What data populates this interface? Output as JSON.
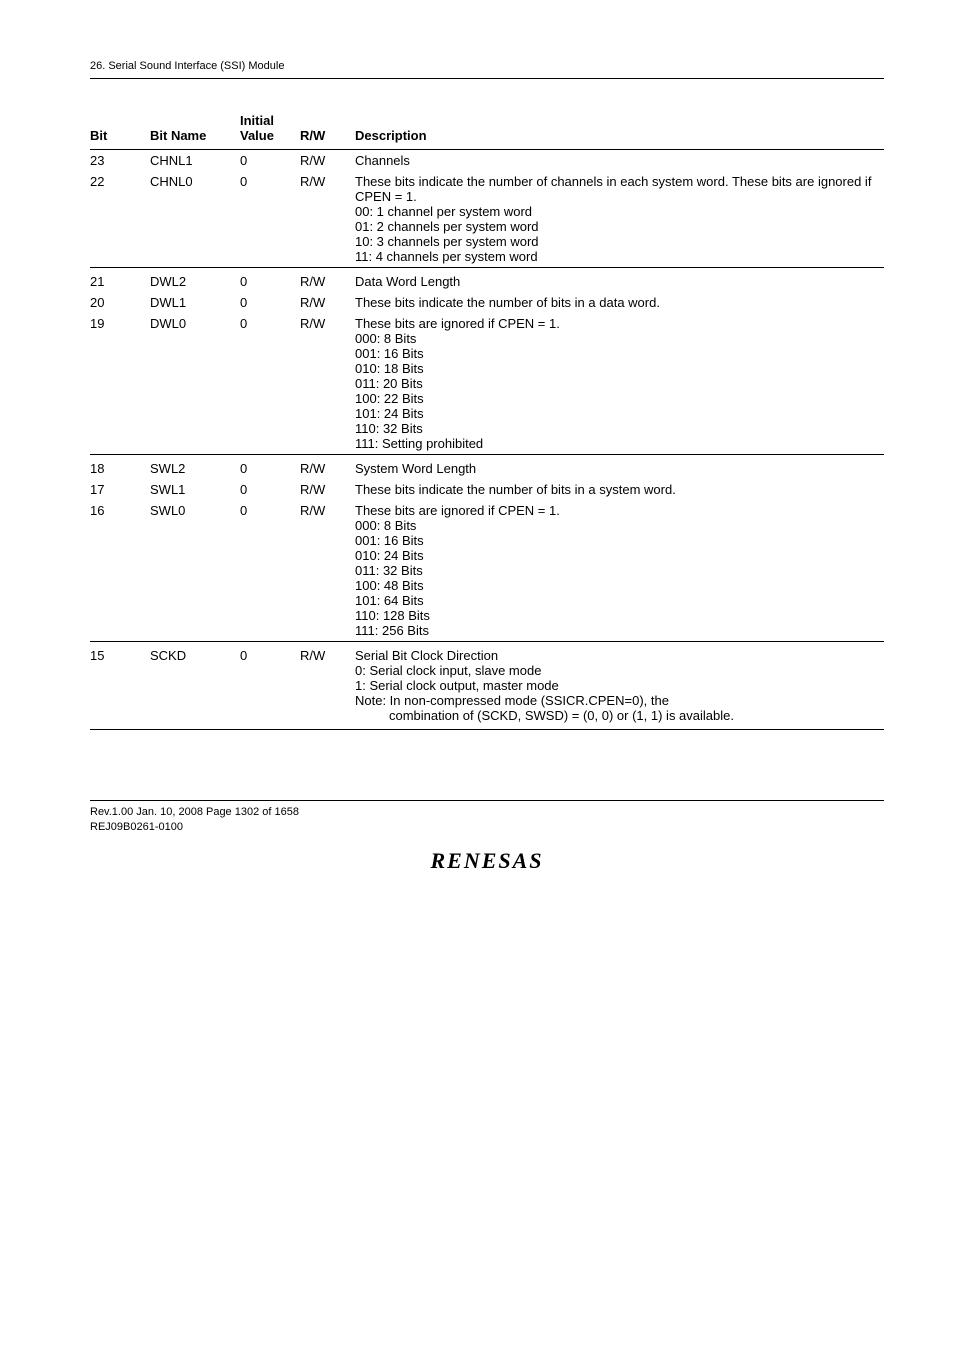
{
  "header": {
    "section": "26.   Serial Sound Interface (SSI) Module"
  },
  "table": {
    "columns": {
      "bit": "Bit",
      "bitname": "Bit Name",
      "initial_line1": "Initial",
      "initial_line2": "Value",
      "rw": "R/W",
      "desc": "Description"
    },
    "rows": {
      "r23": {
        "bit": "23",
        "name": "CHNL1",
        "init": "0",
        "rw": "R/W",
        "desc0": "Channels"
      },
      "r22": {
        "bit": "22",
        "name": "CHNL0",
        "init": "0",
        "rw": "R/W",
        "d0": "These bits indicate the number of channels in each system word. These bits are ignored if CPEN = 1.",
        "d1": "00: 1 channel per system word",
        "d2": "01: 2 channels per system word",
        "d3": "10: 3 channels per system word",
        "d4": "11: 4 channels per system word"
      },
      "r21": {
        "bit": "21",
        "name": "DWL2",
        "init": "0",
        "rw": "R/W",
        "desc0": "Data Word Length"
      },
      "r20": {
        "bit": "20",
        "name": "DWL1",
        "init": "0",
        "rw": "R/W",
        "d0": "These bits indicate the number of bits in a data word."
      },
      "r19": {
        "bit": "19",
        "name": "DWL0",
        "init": "0",
        "rw": "R/W",
        "d0": "These bits are ignored if CPEN = 1.",
        "d1": "000: 8 Bits",
        "d2": "001: 16 Bits",
        "d3": "010: 18 Bits",
        "d4": "011: 20 Bits",
        "d5": "100: 22 Bits",
        "d6": "101: 24 Bits",
        "d7": "110: 32 Bits",
        "d8": "111: Setting prohibited"
      },
      "r18": {
        "bit": "18",
        "name": "SWL2",
        "init": "0",
        "rw": "R/W",
        "desc0": "System Word Length"
      },
      "r17": {
        "bit": "17",
        "name": "SWL1",
        "init": "0",
        "rw": "R/W",
        "d0": "These bits indicate the number of bits in a system word."
      },
      "r16": {
        "bit": "16",
        "name": "SWL0",
        "init": "0",
        "rw": "R/W",
        "d0": "These bits are ignored if CPEN = 1.",
        "d1": "000: 8 Bits",
        "d2": "001: 16 Bits",
        "d3": "010: 24 Bits",
        "d4": "011: 32 Bits",
        "d5": "100: 48 Bits",
        "d6": "101: 64 Bits",
        "d7": "110: 128 Bits",
        "d8": "111: 256 Bits"
      },
      "r15": {
        "bit": "15",
        "name": "SCKD",
        "init": "0",
        "rw": "R/W",
        "d0": "Serial Bit Clock Direction",
        "d1": "0: Serial clock input, slave mode",
        "d2": "1: Serial clock output, master mode",
        "d3": "Note: In non-compressed mode (SSICR.CPEN=0), the",
        "d4": "combination of (SCKD, SWSD) = (0, 0) or (1, 1) is available."
      }
    }
  },
  "footer": {
    "line1": "Rev.1.00  Jan. 10, 2008  Page 1302 of 1658",
    "line2": "REJ09B0261-0100",
    "logo": "RENESAS"
  }
}
